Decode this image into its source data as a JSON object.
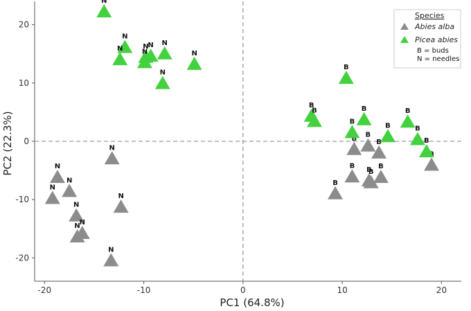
{
  "chart_data": {
    "type": "scatter",
    "xlabel": "PC1 (64.8%)",
    "ylabel": "PC2 (22.3%)",
    "xlim": [
      -21,
      22
    ],
    "ylim": [
      -24,
      24
    ],
    "xticks": [
      -20,
      -10,
      0,
      10,
      20
    ],
    "yticks": [
      -20,
      -10,
      0,
      10,
      20
    ],
    "reference_lines": {
      "x": 0,
      "y": 0,
      "style": "dashed"
    },
    "legend": {
      "title": "Species",
      "position": "top-right",
      "notes": [
        "B = buds",
        "N = needles"
      ]
    },
    "series": [
      {
        "name": "Abies alba",
        "color": "#8c8c8c",
        "points": [
          {
            "x": -13.2,
            "y": -3.0,
            "label": "N"
          },
          {
            "x": -18.7,
            "y": -6.2,
            "label": "N"
          },
          {
            "x": -17.5,
            "y": -8.6,
            "label": "N"
          },
          {
            "x": -19.2,
            "y": -9.8,
            "label": "N"
          },
          {
            "x": -12.3,
            "y": -11.3,
            "label": "N"
          },
          {
            "x": -16.8,
            "y": -12.8,
            "label": "N"
          },
          {
            "x": -16.2,
            "y": -15.8,
            "label": "N"
          },
          {
            "x": -16.7,
            "y": -16.4,
            "label": "N"
          },
          {
            "x": -13.3,
            "y": -20.5,
            "label": "N"
          },
          {
            "x": 11.2,
            "y": -1.4,
            "label": "B"
          },
          {
            "x": 12.6,
            "y": -0.8,
            "label": "B"
          },
          {
            "x": 13.7,
            "y": -2.0,
            "label": "B"
          },
          {
            "x": 19.0,
            "y": -4.1,
            "label": "B"
          },
          {
            "x": 11.0,
            "y": -6.1,
            "label": "B"
          },
          {
            "x": 13.9,
            "y": -6.2,
            "label": "B"
          },
          {
            "x": 12.7,
            "y": -6.8,
            "label": "B"
          },
          {
            "x": 12.9,
            "y": -7.1,
            "label": "B"
          },
          {
            "x": 9.3,
            "y": -9.0,
            "label": "B"
          }
        ]
      },
      {
        "name": "Picea abies",
        "color": "#44d13f",
        "points": [
          {
            "x": -14.0,
            "y": 22.2,
            "label": "N"
          },
          {
            "x": -11.9,
            "y": 16.1,
            "label": "N"
          },
          {
            "x": -12.4,
            "y": 14.0,
            "label": "N"
          },
          {
            "x": -9.8,
            "y": 14.4,
            "label": "N"
          },
          {
            "x": -9.3,
            "y": 14.6,
            "label": "N"
          },
          {
            "x": -7.9,
            "y": 15.0,
            "label": "N"
          },
          {
            "x": -9.9,
            "y": 13.5,
            "label": "N"
          },
          {
            "x": -4.9,
            "y": 13.2,
            "label": "N"
          },
          {
            "x": -8.1,
            "y": 9.9,
            "label": "N"
          },
          {
            "x": 10.4,
            "y": 10.8,
            "label": "B"
          },
          {
            "x": 6.9,
            "y": 4.3,
            "label": "B"
          },
          {
            "x": 7.2,
            "y": 3.4,
            "label": "B"
          },
          {
            "x": 12.2,
            "y": 3.7,
            "label": "B"
          },
          {
            "x": 16.6,
            "y": 3.3,
            "label": "B"
          },
          {
            "x": 11.0,
            "y": 1.5,
            "label": "B"
          },
          {
            "x": 14.6,
            "y": 0.8,
            "label": "B"
          },
          {
            "x": 17.6,
            "y": 0.3,
            "label": "B"
          },
          {
            "x": 18.5,
            "y": -1.8,
            "label": "B"
          }
        ]
      }
    ]
  }
}
